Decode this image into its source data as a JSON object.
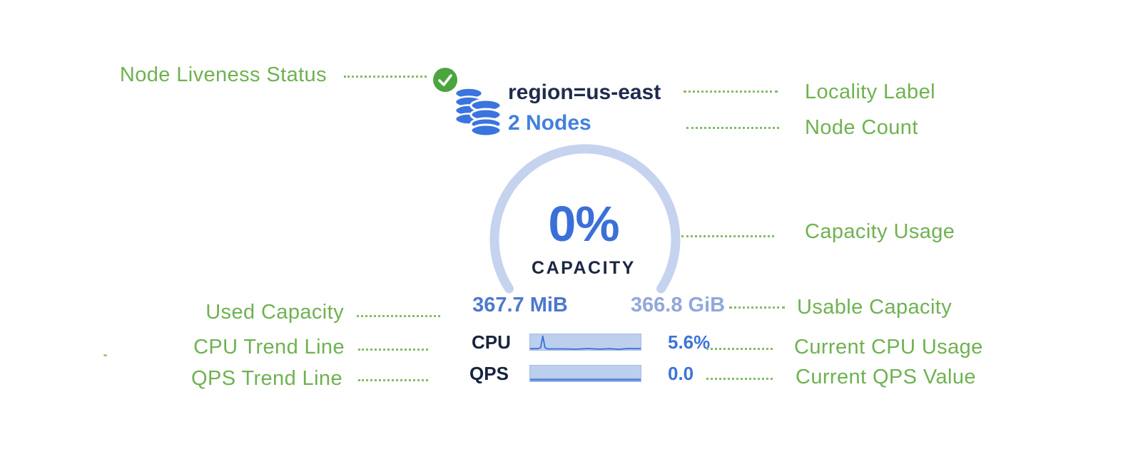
{
  "colors": {
    "annotation_green": "#6fb251",
    "connector_dot_green": "#85bb66",
    "navy_text": "#1c2742",
    "accent_blue": "#3b74da",
    "used_capacity_blue": "#4d79ce",
    "usable_capacity_blue": "#92a8da",
    "gauge_track": "#c5d3ef",
    "sparkline_fill": "#bccfed",
    "liveness_green": "#4aa53e",
    "database_blue": "#3a74de"
  },
  "icons": {
    "liveness": "check-circle-icon",
    "nodes": "database-stack-icon"
  },
  "node": {
    "locality": "region=us-east",
    "node_count": "2 Nodes",
    "capacity_used_pct": "0%",
    "capacity_caption": "CAPACITY",
    "used_capacity": "367.7 MiB",
    "usable_capacity": "366.8 GiB",
    "cpu_label": "CPU",
    "cpu_value": "5.6%",
    "qps_label": "QPS",
    "qps_value": "0.0",
    "cpu_trend": {
      "points": [
        [
          0,
          0.08
        ],
        [
          0.07,
          0.08
        ],
        [
          0.095,
          0.14
        ],
        [
          0.115,
          0.88
        ],
        [
          0.135,
          0.14
        ],
        [
          0.16,
          0.07
        ],
        [
          0.3,
          0.07
        ],
        [
          0.42,
          0.05
        ],
        [
          0.52,
          0.09
        ],
        [
          0.63,
          0.05
        ],
        [
          0.72,
          0.08
        ],
        [
          0.8,
          0.04
        ],
        [
          0.88,
          0.09
        ],
        [
          1,
          0.08
        ]
      ]
    },
    "qps_trend": {
      "points": [
        [
          0,
          0.1
        ],
        [
          1,
          0.1
        ]
      ]
    }
  },
  "annotations": {
    "left": [
      "Node Liveness Status",
      "Used Capacity",
      "CPU Trend Line",
      "QPS Trend Line"
    ],
    "right": [
      "Locality Label",
      "Node Count",
      "Capacity Usage",
      "Usable Capacity",
      "Current CPU Usage",
      "Current QPS Value"
    ]
  }
}
